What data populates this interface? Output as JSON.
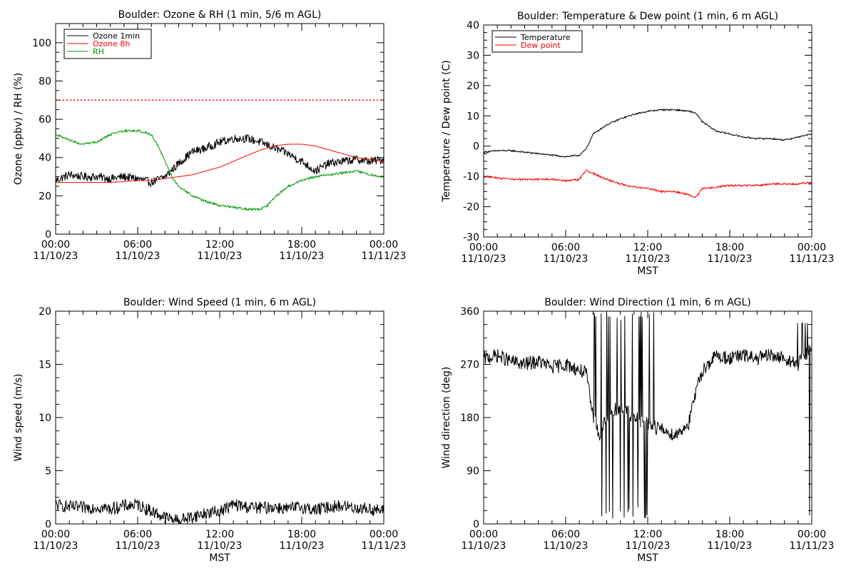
{
  "chart_data": [
    {
      "type": "line",
      "title": "Boulder: Ozone & RH (1 min, 5/6 m AGL)",
      "xlabel": "",
      "ylabel": "Ozone (ppbv) / RH (%)",
      "xlim": [
        0,
        24
      ],
      "ylim": [
        0,
        110
      ],
      "x_ticks": [
        "00:00\n11/10/23",
        "06:00\n11/10/23",
        "12:00\n11/10/23",
        "18:00\n11/10/23",
        "00:00\n11/11/23"
      ],
      "y_ticks": [
        0,
        20,
        40,
        60,
        80,
        100
      ],
      "legend_placement": "top-left",
      "reference_line": {
        "y": 70,
        "style": "dotted",
        "color": "#ff0000"
      },
      "series": [
        {
          "name": "Ozone 1min",
          "color": "#000000",
          "x_hours": [
            0,
            1,
            2,
            3,
            4,
            5,
            6,
            7,
            8,
            9,
            10,
            11,
            12,
            13,
            14,
            15,
            16,
            17,
            18,
            19,
            20,
            21,
            22,
            23,
            24
          ],
          "values": [
            28,
            31,
            30,
            30,
            29,
            30,
            29,
            27,
            30,
            37,
            43,
            45,
            48,
            50,
            50,
            48,
            45,
            42,
            38,
            33,
            37,
            38,
            39,
            38,
            39
          ]
        },
        {
          "name": "Ozone 8h",
          "color": "#ff0000",
          "x_hours": [
            0,
            2,
            4,
            6,
            7,
            8,
            9,
            10,
            11,
            12,
            13,
            14,
            15,
            16,
            17,
            18,
            19,
            20,
            21,
            22,
            23,
            24
          ],
          "values": [
            27,
            27,
            27,
            28,
            28,
            29,
            30,
            31,
            33,
            35,
            38,
            41,
            44,
            46,
            47,
            47,
            46,
            44,
            42,
            40,
            39,
            38
          ]
        },
        {
          "name": "RH",
          "color": "#009900",
          "x_hours": [
            0,
            1,
            2,
            3,
            4,
            5,
            6,
            7,
            7.5,
            8,
            8.5,
            9,
            10,
            11,
            12,
            13,
            14,
            15,
            15.5,
            16,
            17,
            18,
            19,
            20,
            21,
            22,
            23,
            24
          ],
          "values": [
            52,
            49,
            47,
            48,
            52,
            54,
            54,
            52,
            46,
            38,
            30,
            25,
            20,
            17,
            15,
            14,
            13,
            13,
            15,
            19,
            25,
            28,
            30,
            31,
            32,
            33,
            31,
            30
          ]
        }
      ]
    },
    {
      "type": "line",
      "title": "Boulder: Temperature & Dew point (1 min, 6 m AGL)",
      "xlabel": "MST",
      "ylabel": "Temperature / Dew point (C)",
      "xlim": [
        0,
        24
      ],
      "ylim": [
        -30,
        40
      ],
      "x_ticks": [
        "00:00\n11/10/23",
        "06:00\n11/10/23",
        "12:00\n11/10/23",
        "18:00\n11/10/23",
        "00:00\n11/11/23"
      ],
      "y_ticks": [
        -30,
        -20,
        -10,
        0,
        10,
        20,
        30,
        40
      ],
      "legend_placement": "top-left",
      "series": [
        {
          "name": "Temperature",
          "color": "#000000",
          "x_hours": [
            0,
            1,
            2,
            3,
            4,
            5,
            6,
            7,
            7.5,
            8,
            9,
            10,
            11,
            12,
            13,
            14,
            15,
            15.5,
            16,
            17,
            18,
            19,
            20,
            21,
            22,
            23,
            24
          ],
          "values": [
            -2,
            -1.5,
            -1.5,
            -2,
            -2.5,
            -3,
            -3.5,
            -3,
            -1,
            4,
            7,
            9,
            10.5,
            11.5,
            12,
            12,
            11.5,
            11,
            8,
            5,
            4,
            3,
            2.5,
            2.5,
            2,
            3,
            4
          ]
        },
        {
          "name": "Dew point",
          "color": "#ff0000",
          "x_hours": [
            0,
            1,
            2,
            3,
            4,
            5,
            6,
            7,
            7.5,
            8,
            9,
            10,
            11,
            12,
            13,
            14,
            15,
            15.5,
            16,
            17,
            18,
            19,
            20,
            21,
            22,
            23,
            24
          ],
          "values": [
            -10,
            -10.5,
            -11,
            -11,
            -11,
            -11,
            -11.5,
            -11,
            -8,
            -9,
            -11,
            -12.5,
            -13.5,
            -14,
            -15,
            -15,
            -16,
            -17,
            -14,
            -13.5,
            -13,
            -13,
            -13,
            -12.5,
            -12.5,
            -12.5,
            -12
          ]
        }
      ]
    },
    {
      "type": "line",
      "title": "Boulder: Wind Speed (1 min, 6 m AGL)",
      "xlabel": "MST",
      "ylabel": "Wind speed (m/s)",
      "xlim": [
        0,
        24
      ],
      "ylim": [
        0,
        20
      ],
      "x_ticks": [
        "00:00\n11/10/23",
        "06:00\n11/10/23",
        "12:00\n11/10/23",
        "18:00\n11/10/23",
        "00:00\n11/11/23"
      ],
      "y_ticks": [
        0,
        5,
        10,
        15,
        20
      ],
      "series": [
        {
          "name": "",
          "color": "#000000",
          "x_hours": [
            0,
            1,
            2,
            3,
            4,
            5,
            6,
            7,
            8,
            9,
            10,
            11,
            12,
            13,
            14,
            15,
            16,
            17,
            18,
            19,
            20,
            21,
            22,
            23,
            24
          ],
          "values": [
            1.8,
            1.6,
            1.5,
            1.6,
            1.4,
            1.7,
            1.8,
            1.2,
            0.6,
            0.3,
            0.7,
            1.0,
            1.2,
            1.8,
            1.6,
            1.5,
            1.6,
            1.4,
            1.6,
            1.3,
            1.6,
            1.7,
            1.5,
            1.4,
            1.2
          ]
        }
      ]
    },
    {
      "type": "line",
      "title": "Boulder: Wind Direction (1 min, 6 m AGL)",
      "xlabel": "MST",
      "ylabel": "Wind direction (deg)",
      "xlim": [
        0,
        24
      ],
      "ylim": [
        0,
        360
      ],
      "x_ticks": [
        "00:00\n11/10/23",
        "06:00\n11/10/23",
        "12:00\n11/10/23",
        "18:00\n11/10/23",
        "00:00\n11/11/23"
      ],
      "y_ticks": [
        0,
        90,
        180,
        270,
        360
      ],
      "series": [
        {
          "name": "",
          "color": "#000000",
          "x_hours": [
            0,
            1,
            2,
            3,
            4,
            5,
            6,
            7,
            7.5,
            8,
            8.5,
            9,
            10,
            11,
            12,
            13,
            14,
            15,
            15.5,
            16,
            17,
            18,
            19,
            20,
            21,
            22,
            23,
            24
          ],
          "values": [
            280,
            285,
            275,
            270,
            275,
            265,
            270,
            260,
            255,
            180,
            150,
            180,
            200,
            180,
            170,
            160,
            150,
            170,
            220,
            260,
            285,
            280,
            285,
            280,
            285,
            280,
            270,
            300
          ]
        }
      ]
    }
  ]
}
